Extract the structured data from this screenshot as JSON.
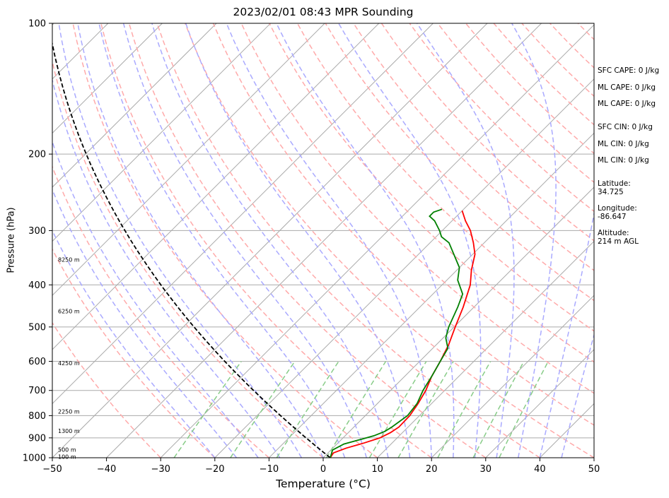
{
  "title": "2023/02/01 08:43 MPR Sounding",
  "chart_data": {
    "type": "line",
    "xlabel": "Temperature (°C)",
    "ylabel": "Pressure (hPa)",
    "xlim": [
      -50,
      50
    ],
    "ylim": [
      1000,
      100
    ],
    "y_scale": "log",
    "x_ticks": [
      -50,
      -40,
      -30,
      -20,
      -10,
      0,
      10,
      20,
      30,
      40,
      50
    ],
    "y_ticks": [
      100,
      200,
      300,
      400,
      500,
      600,
      700,
      800,
      900,
      1000
    ],
    "grid": true,
    "skew": true,
    "series": [
      {
        "color": "#ff0000",
        "x": [
          1.3,
          1.0,
          2.5,
          4.8,
          6.8,
          7.8,
          8.3,
          8.2,
          7.5,
          6.5,
          5.0,
          3.8,
          2.3,
          0.2,
          -2.0,
          -4.8,
          -7.3,
          -9.6,
          -12.0,
          -14.8,
          -17.5,
          -20.0
        ],
        "y": [
          1000,
          975,
          950,
          925,
          900,
          875,
          850,
          800,
          750,
          700,
          650,
          600,
          550,
          500,
          450,
          400,
          370,
          340,
          320,
          300,
          285,
          270
        ]
      },
      {
        "color": "#008000",
        "x": [
          1.3,
          0.3,
          1.3,
          3.3,
          5.3,
          6.5,
          7.0,
          7.8,
          7.3,
          6.0,
          5.0,
          3.8,
          2.8,
          0.5,
          -1.0,
          -3.0,
          -4.5,
          -8.0,
          -10.0,
          -13.5,
          -16.5,
          -19.0,
          -20.5,
          -23.2,
          -25.0,
          -25.0,
          -24.0
        ],
        "y": [
          1000,
          960,
          930,
          910,
          890,
          870,
          850,
          800,
          750,
          700,
          650,
          600,
          560,
          530,
          500,
          450,
          420,
          390,
          365,
          340,
          320,
          310,
          300,
          285,
          278,
          272,
          268
        ]
      }
    ],
    "annotations": [
      {
        "text": "8250 m",
        "p": 350
      },
      {
        "text": "6250 m",
        "p": 460
      },
      {
        "text": "4250 m",
        "p": 605
      },
      {
        "text": "2250 m",
        "p": 782
      },
      {
        "text": "1300 m",
        "p": 868
      },
      {
        "text": "500 m",
        "p": 957
      },
      {
        "text": "100 m",
        "p": 995
      }
    ],
    "background_lines": {
      "dry_adiabat_color": "#ffaaaa",
      "moist_adiabat_color": "#aaaaff",
      "mixing_ratio_color": "#88cc88",
      "isotherm_color": "#aaaaaa",
      "parcel_color": "#000000"
    }
  },
  "indices": {
    "sfc_cape": "SFC CAPE: 0 J/kg",
    "ml_cape_1": "ML CAPE: 0 J/kg",
    "ml_cape_2": "ML CAPE: 0 J/kg",
    "sfc_cin": "SFC CIN: 0 J/kg",
    "ml_cin_1": "ML CIN: 0 J/kg",
    "ml_cin_2": "ML CIN: 0 J/kg",
    "latitude": "Latitude:\n34.725",
    "longitude": "Longitude:\n-86.647",
    "altitude": "Altitude:\n214 m AGL"
  }
}
